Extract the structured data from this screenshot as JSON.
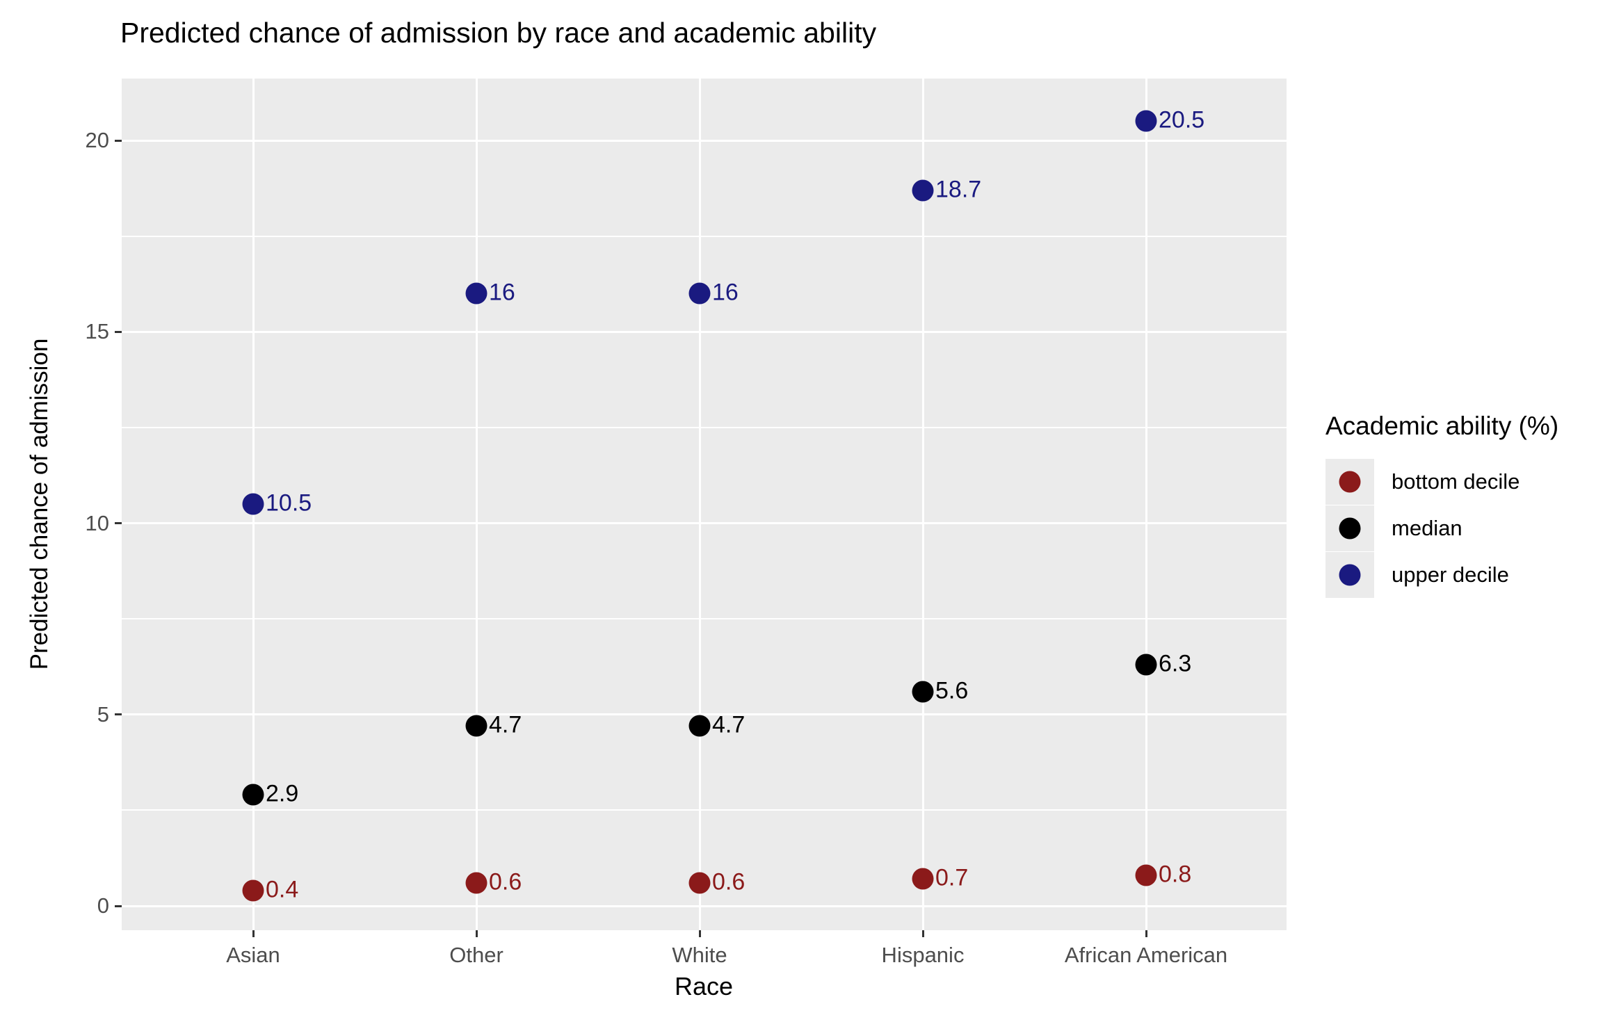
{
  "chart_data": {
    "type": "scatter",
    "title": "Predicted chance of admission by race and academic ability",
    "xlabel": "Race",
    "ylabel": "Predicted chance of admission",
    "categories": [
      "Asian",
      "Other",
      "White",
      "Hispanic",
      "African American"
    ],
    "y_axis": {
      "ticks": [
        0,
        5,
        10,
        15,
        20
      ],
      "minor_gridlines": [
        2.5,
        7.5,
        12.5,
        17.5
      ],
      "ylim": [
        -0.6,
        21.2
      ]
    },
    "grid": {
      "major": true,
      "minor_horizontal": true,
      "vertical_major": true
    },
    "point_labels_shown": true,
    "legend": {
      "title": "Academic ability (%)",
      "position": "right",
      "entries": [
        "bottom decile",
        "median",
        "upper decile"
      ]
    },
    "series": [
      {
        "name": "bottom decile",
        "color": "#8B1A1A",
        "values": [
          0.4,
          0.6,
          0.6,
          0.7,
          0.8
        ]
      },
      {
        "name": "median",
        "color": "#000000",
        "values": [
          2.9,
          4.7,
          4.7,
          5.6,
          6.3
        ]
      },
      {
        "name": "upper decile",
        "color": "#1A1A80",
        "values": [
          10.5,
          16,
          16,
          18.7,
          20.5
        ]
      }
    ]
  },
  "style": {
    "background": "#FFFFFF",
    "panel_bg": "#EBEBEB",
    "grid_color": "#FFFFFF",
    "tick_color": "#333333",
    "tick_label_color": "#4D4D4D",
    "axis_title_color": "#000000",
    "legend_key_bg": "#EBEBEB"
  }
}
